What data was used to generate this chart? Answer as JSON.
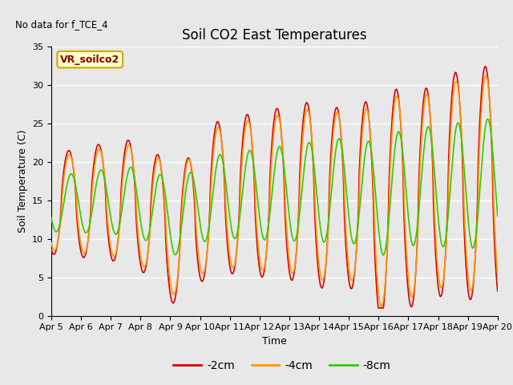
{
  "title": "Soil CO2 East Temperatures",
  "no_data_text": "No data for f_TCE_4",
  "legend_box_text": "VR_soilco2",
  "xlabel": "Time",
  "ylabel": "Soil Temperature (C)",
  "ylim": [
    0,
    35
  ],
  "yticks": [
    0,
    5,
    10,
    15,
    20,
    25,
    30,
    35
  ],
  "x_tick_labels": [
    "Apr 5",
    "Apr 6",
    "Apr 7",
    "Apr 8",
    "Apr 9",
    "Apr 10",
    "Apr 11",
    "Apr 12",
    "Apr 13",
    "Apr 14",
    "Apr 15",
    "Apr 16",
    "Apr 17",
    "Apr 18",
    "Apr 19",
    "Apr 20"
  ],
  "line_colors": {
    "2cm": "#dd0000",
    "4cm": "#ff9900",
    "8cm": "#33cc00"
  },
  "legend_labels": [
    "-2cm",
    "-4cm",
    "-8cm"
  ],
  "fig_bg_color": "#e8e8e8",
  "plot_bg_color": "#e8e8e8",
  "title_fontsize": 12,
  "axis_label_fontsize": 9,
  "tick_fontsize": 8
}
